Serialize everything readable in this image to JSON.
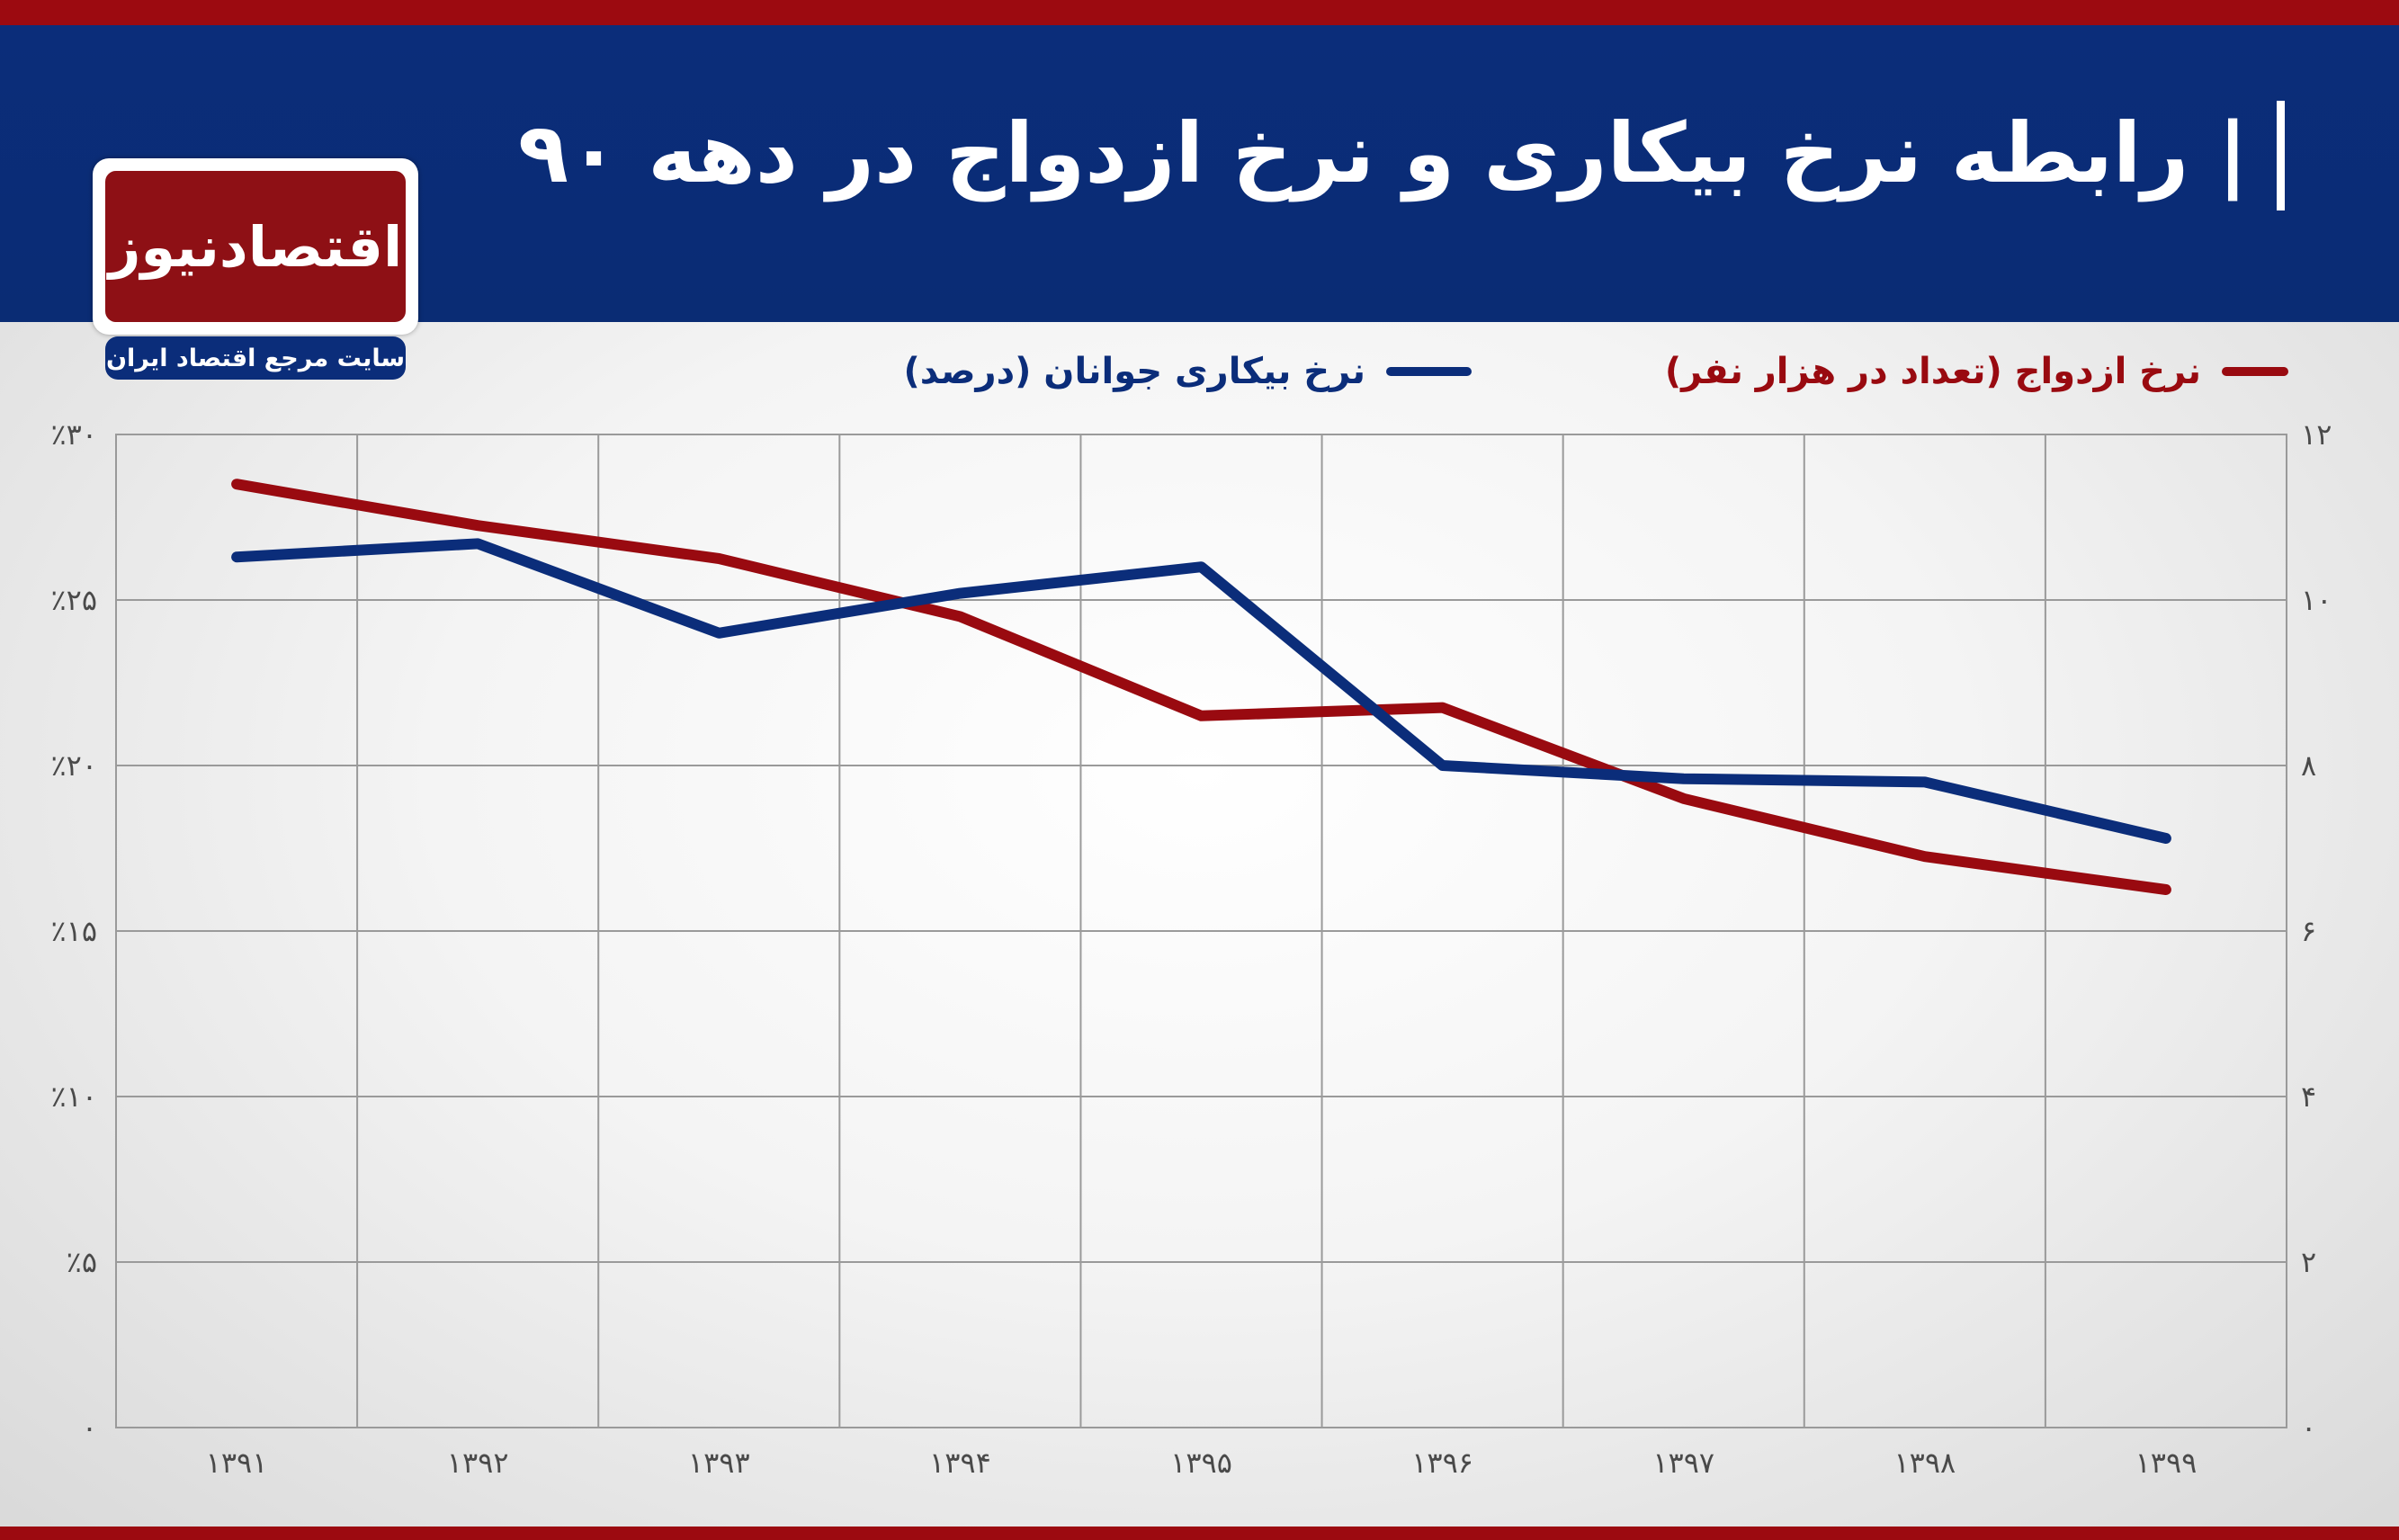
{
  "title": "| رابطه نرخ بیکاری و نرخ ازدواج در دهه ۹۰",
  "logo": {
    "name": "اقتصادنیوز",
    "tagline": "سایت مرجع اقتصاد ایران"
  },
  "colors": {
    "unemployment": "#0b2d7a",
    "marriage": "#990a10",
    "header": "#0b2d7a",
    "accent": "#9c0a10"
  },
  "chart_data": {
    "type": "line",
    "title": "رابطه نرخ بیکاری و نرخ ازدواج در دهه ۹۰",
    "categories": [
      "۱۳۹۱",
      "۱۳۹۲",
      "۱۳۹۳",
      "۱۳۹۴",
      "۱۳۹۵",
      "۱۳۹۶",
      "۱۳۹۷",
      "۱۳۹۸",
      "۱۳۹۹"
    ],
    "series": [
      {
        "name": "نرخ بیکاری جوانان (درصد)",
        "axis": "left",
        "color": "#0b2d7a",
        "values": [
          26.3,
          26.7,
          24.0,
          25.2,
          26.0,
          20.0,
          19.6,
          19.5,
          17.8
        ]
      },
      {
        "name": "نرخ ازدواج (تعداد در هزار نفر)",
        "axis": "right",
        "color": "#990a10",
        "values": [
          11.4,
          10.9,
          10.5,
          9.8,
          8.6,
          8.7,
          7.6,
          6.9,
          6.5
        ]
      }
    ],
    "left_axis": {
      "min": 0,
      "max": 30,
      "ticks": [
        "۰",
        "٪۵",
        "٪۱۰",
        "٪۱۵",
        "٪۲۰",
        "٪۲۵",
        "٪۳۰"
      ]
    },
    "right_axis": {
      "min": 0,
      "max": 12,
      "ticks": [
        "۰",
        "۲",
        "۴",
        "۶",
        "۸",
        "۱۰",
        "۱۲"
      ]
    },
    "grid": true,
    "legend": "top"
  }
}
